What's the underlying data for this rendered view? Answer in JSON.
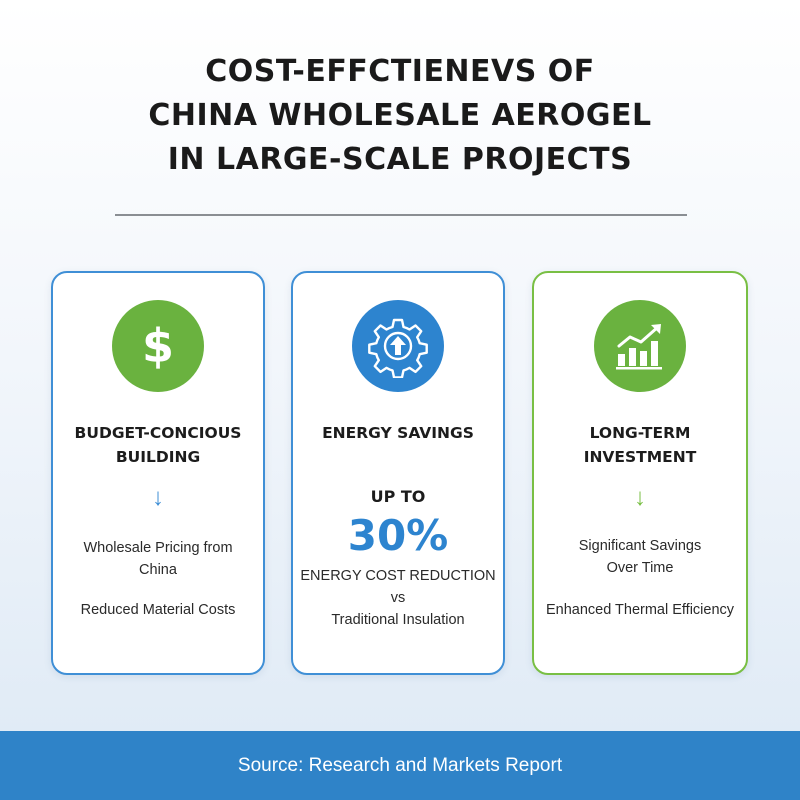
{
  "title": {
    "line1": "COST-EFFCTIENEVS OF",
    "line2": "CHINA WHOLESALE AEROGEL",
    "line3": "IN LARGE-SCALE PROJECTS"
  },
  "colors": {
    "blue": "#2d84cf",
    "green": "#6ab23f",
    "footer": "#2f83c8"
  },
  "cards": [
    {
      "icon": "dollar-icon",
      "heading_line1": "BUDGET-CONCIOUS",
      "heading_line2": "BUILDING",
      "arrow": "↓",
      "text1_line1": "Wholesale Pricing from",
      "text1_line2": "China",
      "text2": "Reduced Material Costs"
    },
    {
      "icon": "gear-upload-icon",
      "heading": "ENERGY SAVINGS",
      "up_to": "UP TO",
      "percent": "30%",
      "text_line1": "ENERGY COST REDUCTION",
      "text_line2": "vs",
      "text_line3": "Traditional Insulation"
    },
    {
      "icon": "growth-chart-icon",
      "heading_line1": "LONG-TERM",
      "heading_line2": "INVESTMENT",
      "arrow": "↓",
      "text1_line1": "Significant Savings",
      "text1_line2": "Over Time",
      "text2": "Enhanced Thermal Efficiency"
    }
  ],
  "footer": {
    "source": "Source: Research and Markets Report"
  }
}
